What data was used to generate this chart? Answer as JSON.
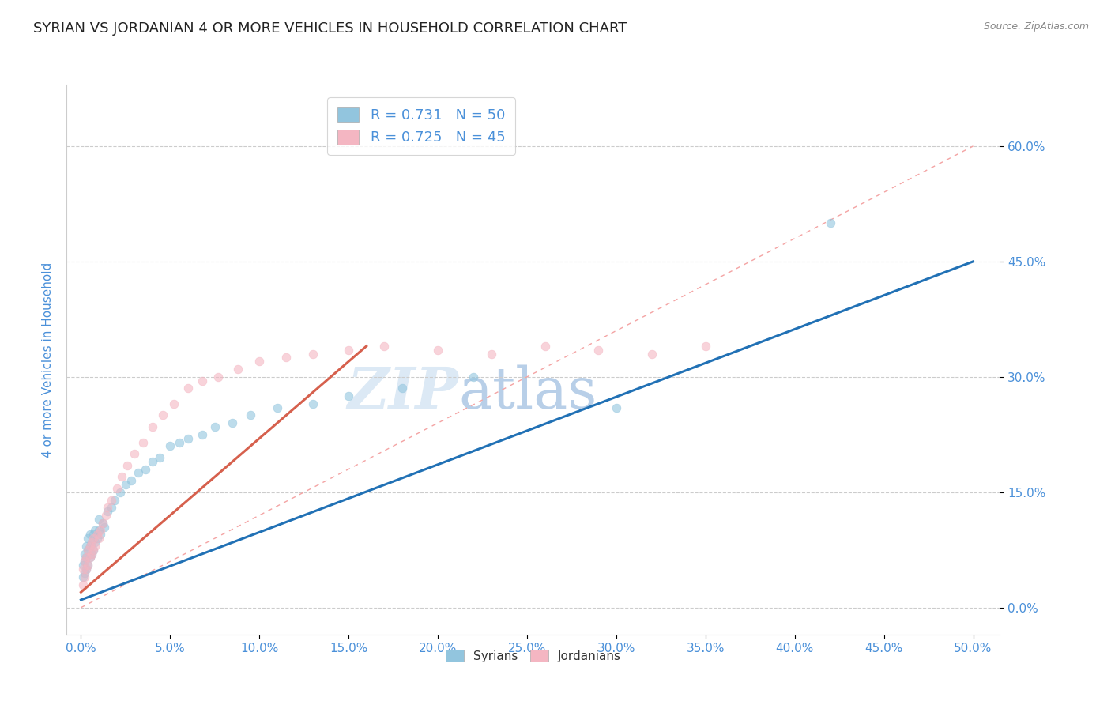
{
  "title": "SYRIAN VS JORDANIAN 4 OR MORE VEHICLES IN HOUSEHOLD CORRELATION CHART",
  "source": "Source: ZipAtlas.com",
  "xlim": [
    -0.008,
    0.515
  ],
  "ylim": [
    -0.035,
    0.68
  ],
  "ylabel": "4 or more Vehicles in Household",
  "syrian_color": "#92c5de",
  "jordanian_color": "#f4b6c2",
  "syrian_line_color": "#2171b5",
  "jordanian_line_color": "#d6604d",
  "reference_line_color": "#f4a4a4",
  "R_syrian": 0.731,
  "N_syrian": 50,
  "R_jordanian": 0.725,
  "N_jordanian": 45,
  "syrian_x": [
    0.001,
    0.001,
    0.002,
    0.002,
    0.002,
    0.003,
    0.003,
    0.003,
    0.004,
    0.004,
    0.004,
    0.005,
    0.005,
    0.005,
    0.006,
    0.006,
    0.007,
    0.007,
    0.008,
    0.008,
    0.009,
    0.01,
    0.01,
    0.011,
    0.012,
    0.013,
    0.015,
    0.017,
    0.019,
    0.022,
    0.025,
    0.028,
    0.032,
    0.036,
    0.04,
    0.044,
    0.05,
    0.055,
    0.06,
    0.068,
    0.075,
    0.085,
    0.095,
    0.11,
    0.13,
    0.15,
    0.18,
    0.22,
    0.3,
    0.42
  ],
  "syrian_y": [
    0.04,
    0.055,
    0.06,
    0.045,
    0.07,
    0.05,
    0.065,
    0.08,
    0.055,
    0.075,
    0.09,
    0.065,
    0.08,
    0.095,
    0.07,
    0.085,
    0.075,
    0.095,
    0.085,
    0.1,
    0.09,
    0.1,
    0.115,
    0.095,
    0.11,
    0.105,
    0.125,
    0.13,
    0.14,
    0.15,
    0.16,
    0.165,
    0.175,
    0.18,
    0.19,
    0.195,
    0.21,
    0.215,
    0.22,
    0.225,
    0.235,
    0.24,
    0.25,
    0.26,
    0.265,
    0.275,
    0.285,
    0.3,
    0.26,
    0.5
  ],
  "jordanian_x": [
    0.001,
    0.001,
    0.002,
    0.002,
    0.003,
    0.003,
    0.004,
    0.004,
    0.005,
    0.005,
    0.006,
    0.006,
    0.007,
    0.007,
    0.008,
    0.009,
    0.01,
    0.011,
    0.012,
    0.014,
    0.015,
    0.017,
    0.02,
    0.023,
    0.026,
    0.03,
    0.035,
    0.04,
    0.046,
    0.052,
    0.06,
    0.068,
    0.077,
    0.088,
    0.1,
    0.115,
    0.13,
    0.15,
    0.17,
    0.2,
    0.23,
    0.26,
    0.29,
    0.32,
    0.35
  ],
  "jordanian_y": [
    0.03,
    0.05,
    0.04,
    0.06,
    0.05,
    0.065,
    0.055,
    0.075,
    0.065,
    0.08,
    0.07,
    0.085,
    0.075,
    0.09,
    0.08,
    0.095,
    0.09,
    0.1,
    0.11,
    0.12,
    0.13,
    0.14,
    0.155,
    0.17,
    0.185,
    0.2,
    0.215,
    0.235,
    0.25,
    0.265,
    0.285,
    0.295,
    0.3,
    0.31,
    0.32,
    0.325,
    0.33,
    0.335,
    0.34,
    0.335,
    0.33,
    0.34,
    0.335,
    0.33,
    0.34
  ],
  "background_color": "#ffffff",
  "grid_color": "#cccccc",
  "title_color": "#222222",
  "axis_label_color": "#4a90d9",
  "tick_label_color": "#4a90d9",
  "watermark_color": "#dce9f5",
  "marker_size": 60,
  "marker_alpha": 0.6,
  "ytick_labels": [
    "0.0%",
    "15.0%",
    "30.0%",
    "45.0%",
    "60.0%"
  ],
  "ytick_vals": [
    0.0,
    0.15,
    0.3,
    0.45,
    0.6
  ],
  "xtick_vals": [
    0.0,
    0.05,
    0.1,
    0.15,
    0.2,
    0.25,
    0.3,
    0.35,
    0.4,
    0.45,
    0.5
  ],
  "syrian_line_x": [
    0.0,
    0.5
  ],
  "syrian_line_y": [
    0.01,
    0.45
  ],
  "jordanian_line_x": [
    0.0,
    0.16
  ],
  "jordanian_line_y": [
    0.02,
    0.34
  ],
  "ref_line_x": [
    0.0,
    0.5
  ],
  "ref_line_y": [
    0.0,
    0.6
  ]
}
